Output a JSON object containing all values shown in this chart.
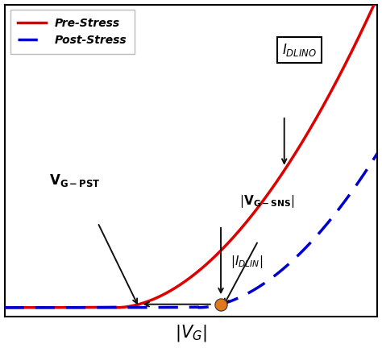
{
  "pre_stress_color": "#DD0000",
  "post_stress_color": "#0000CC",
  "dot_facecolor": "#E07820",
  "arrow_color": "#111111",
  "bg_color": "#FFFFFF",
  "legend_pre": "Pre-Stress",
  "legend_post": "Post-Stress",
  "pre_shift": 3.0,
  "post_shift": 5.2,
  "scale": 0.28,
  "x_min": 0.0,
  "x_max": 10.0,
  "y_min": -0.3,
  "y_max": 10.0,
  "x_dot": 5.8,
  "xlabel_text": "$|V_G|$"
}
